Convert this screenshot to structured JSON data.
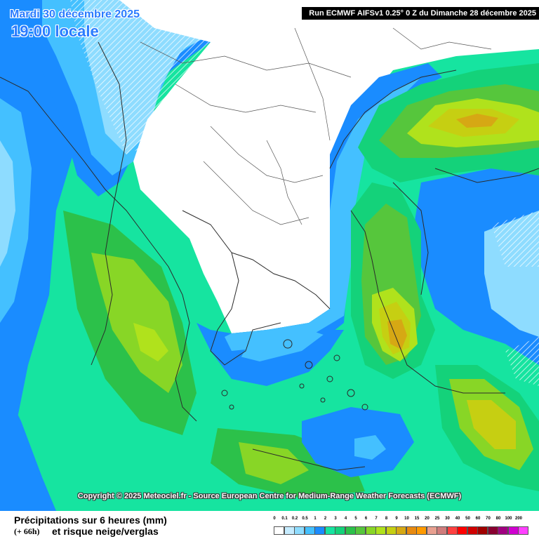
{
  "header": {
    "date": "Mardi 30 décembre 2025",
    "time": "19:00 locale",
    "run": "Run ECMWF AIFSv1 0.25° 0 Z du Dimanche 28 décembre 2025"
  },
  "copyright": "Copyright © 2025 Meteociel.fr - Source European Centre for Medium-Range Weather Forecasts (ECMWF)",
  "legend": {
    "title": "Précipitations sur 6 heures (mm)",
    "lead": "(+ 66h)",
    "subtitle": "et risque neige/verglas",
    "scale": [
      {
        "label": "0",
        "color": "#ffffff"
      },
      {
        "label": "0.1",
        "color": "#c6ecff"
      },
      {
        "label": "0.2",
        "color": "#8edcff"
      },
      {
        "label": "0.5",
        "color": "#44c0ff"
      },
      {
        "label": "1",
        "color": "#1a8cff"
      },
      {
        "label": "2",
        "color": "#16e4a0"
      },
      {
        "label": "3",
        "color": "#14d27a"
      },
      {
        "label": "4",
        "color": "#2cc14a"
      },
      {
        "label": "5",
        "color": "#56c63c"
      },
      {
        "label": "6",
        "color": "#88d626"
      },
      {
        "label": "7",
        "color": "#b0e21c"
      },
      {
        "label": "8",
        "color": "#c6cf12"
      },
      {
        "label": "9",
        "color": "#d6a814"
      },
      {
        "label": "10",
        "color": "#e88a10"
      },
      {
        "label": "15",
        "color": "#ff9a00"
      },
      {
        "label": "20",
        "color": "#e8a090"
      },
      {
        "label": "25",
        "color": "#d07c7c"
      },
      {
        "label": "30",
        "color": "#ff4040"
      },
      {
        "label": "40",
        "color": "#ff0000"
      },
      {
        "label": "50",
        "color": "#d00000"
      },
      {
        "label": "60",
        "color": "#a00000"
      },
      {
        "label": "70",
        "color": "#880030"
      },
      {
        "label": "80",
        "color": "#a00080"
      },
      {
        "label": "100",
        "color": "#d000d0"
      },
      {
        "label": "200",
        "color": "#ff40ff"
      }
    ]
  }
}
